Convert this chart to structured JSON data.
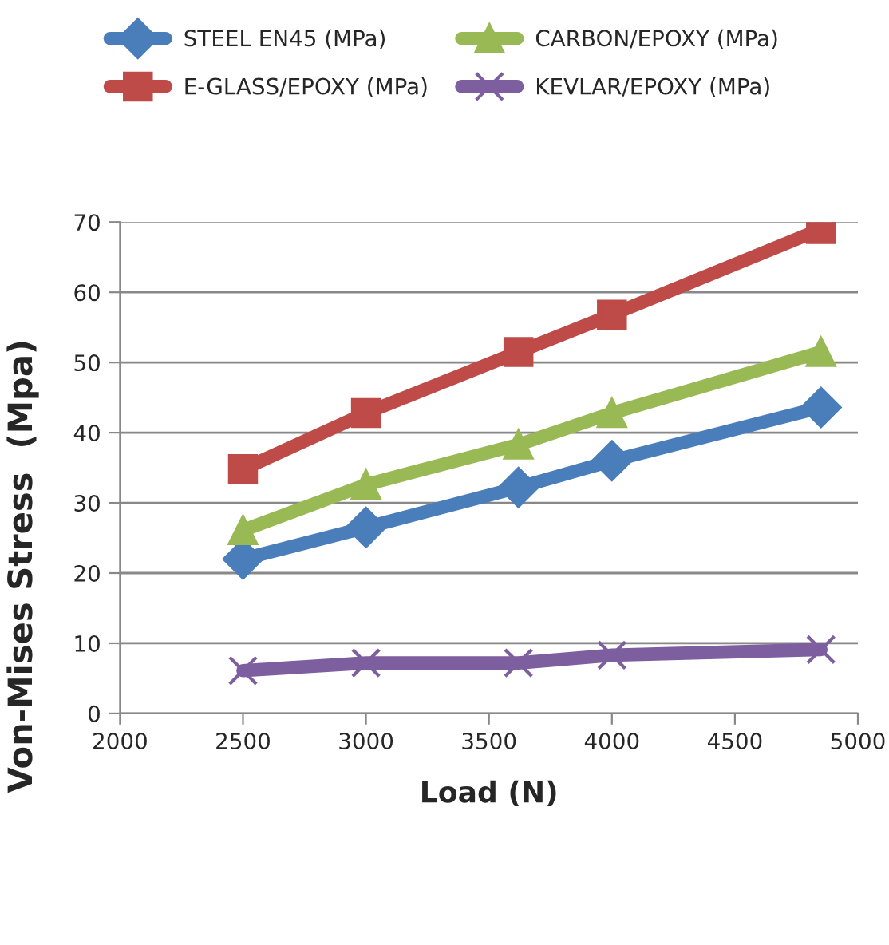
{
  "chart_data": {
    "type": "line",
    "xlabel": "Load (N)",
    "ylabel": "Von-Mises Stress  (Mpa)",
    "x": [
      2500,
      3000,
      3620,
      4000,
      4850
    ],
    "series": [
      {
        "name": "STEEL EN45 (MPa)",
        "color": "#4a7ebb",
        "marker": "diamond",
        "values": [
          22,
          26.5,
          32.2,
          36,
          43.6
        ]
      },
      {
        "name": "E-GLASS/EPOXY (MPa)",
        "color": "#be4b48",
        "marker": "square",
        "values": [
          34.8,
          42.8,
          51.5,
          56.8,
          69
        ]
      },
      {
        "name": "CARBON/EPOXY (MPa)",
        "color": "#98b954",
        "marker": "triangle",
        "values": [
          26.1,
          32.6,
          38.3,
          42.8,
          51.5
        ]
      },
      {
        "name": "KEVLAR/EPOXY (MPa)",
        "color": "#7d5fa0",
        "marker": "cross",
        "values": [
          6.1,
          7.2,
          7.2,
          8.3,
          9.1
        ]
      }
    ],
    "xlim": [
      2000,
      5000
    ],
    "xticks": [
      2000,
      2500,
      3000,
      3500,
      4000,
      4500,
      5000
    ],
    "ylim": [
      0,
      70
    ],
    "yticks": [
      0,
      10,
      20,
      30,
      40,
      50,
      60,
      70
    ],
    "grid": "y",
    "legend": "top",
    "line_style": "solid"
  }
}
